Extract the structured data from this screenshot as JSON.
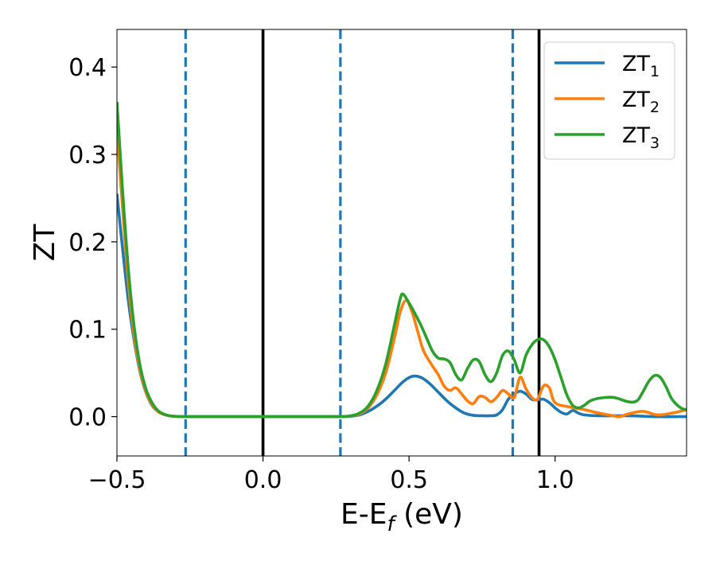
{
  "chart_data": {
    "type": "line",
    "title": "",
    "ylabel": "ZT",
    "xlabel": {
      "base": "E-E",
      "sub": "f",
      "unit": " (eV)"
    },
    "xlim": [
      -0.5,
      1.45
    ],
    "ylim": [
      -0.045,
      0.443
    ],
    "xticks": [
      -0.5,
      0.0,
      0.5,
      1.0
    ],
    "xtick_labels": [
      "−0.5",
      "0.0",
      "0.5",
      "1.0"
    ],
    "yticks": [
      0.0,
      0.1,
      0.2,
      0.3,
      0.4
    ],
    "ytick_labels": [
      "0.0",
      "0.1",
      "0.2",
      "0.3",
      "0.4"
    ],
    "grid": false,
    "legend_position": "top-right",
    "vlines": [
      {
        "x": -0.265,
        "style": "dashed",
        "color": "#1f77b4"
      },
      {
        "x": 0.0,
        "style": "solid",
        "color": "#000000"
      },
      {
        "x": 0.265,
        "style": "dashed",
        "color": "#1f77b4"
      },
      {
        "x": 0.855,
        "style": "dashed",
        "color": "#1f77b4"
      },
      {
        "x": 0.945,
        "style": "solid",
        "color": "#000000"
      }
    ],
    "series": [
      {
        "name": "ZT",
        "name_sub": "1",
        "color": "#1f77b4",
        "points": [
          [
            -0.5,
            0.255
          ],
          [
            -0.48,
            0.19
          ],
          [
            -0.46,
            0.13
          ],
          [
            -0.44,
            0.085
          ],
          [
            -0.42,
            0.05
          ],
          [
            -0.4,
            0.027
          ],
          [
            -0.38,
            0.013
          ],
          [
            -0.36,
            0.006
          ],
          [
            -0.34,
            0.0025
          ],
          [
            -0.32,
            0.001
          ],
          [
            -0.3,
            0.0003
          ],
          [
            -0.25,
            0.0
          ],
          [
            0.0,
            0.0
          ],
          [
            0.25,
            0.0
          ],
          [
            0.3,
            0.0005
          ],
          [
            0.33,
            0.002
          ],
          [
            0.36,
            0.006
          ],
          [
            0.39,
            0.012
          ],
          [
            0.42,
            0.02
          ],
          [
            0.45,
            0.03
          ],
          [
            0.48,
            0.04
          ],
          [
            0.51,
            0.046
          ],
          [
            0.54,
            0.045
          ],
          [
            0.57,
            0.038
          ],
          [
            0.6,
            0.028
          ],
          [
            0.63,
            0.018
          ],
          [
            0.66,
            0.01
          ],
          [
            0.69,
            0.004
          ],
          [
            0.72,
            0.0015
          ],
          [
            0.75,
            0.001
          ],
          [
            0.78,
            0.001
          ],
          [
            0.8,
            0.002
          ],
          [
            0.82,
            0.008
          ],
          [
            0.84,
            0.02
          ],
          [
            0.86,
            0.026
          ],
          [
            0.88,
            0.029
          ],
          [
            0.9,
            0.026
          ],
          [
            0.92,
            0.02
          ],
          [
            0.94,
            0.019
          ],
          [
            0.96,
            0.02
          ],
          [
            0.98,
            0.016
          ],
          [
            1.0,
            0.01
          ],
          [
            1.02,
            0.005
          ],
          [
            1.04,
            0.003
          ],
          [
            1.06,
            0.007
          ],
          [
            1.08,
            0.004
          ],
          [
            1.1,
            0.002
          ],
          [
            1.15,
            0.001
          ],
          [
            1.25,
            0.001
          ],
          [
            1.35,
            0.0
          ],
          [
            1.45,
            0.0
          ]
        ]
      },
      {
        "name": "ZT",
        "name_sub": "2",
        "color": "#ff7f0e",
        "points": [
          [
            -0.5,
            0.33
          ],
          [
            -0.48,
            0.235
          ],
          [
            -0.46,
            0.15
          ],
          [
            -0.44,
            0.09
          ],
          [
            -0.42,
            0.052
          ],
          [
            -0.4,
            0.028
          ],
          [
            -0.38,
            0.014
          ],
          [
            -0.36,
            0.006
          ],
          [
            -0.34,
            0.0025
          ],
          [
            -0.32,
            0.001
          ],
          [
            -0.3,
            0.0003
          ],
          [
            -0.25,
            0.0
          ],
          [
            0.0,
            0.0
          ],
          [
            0.25,
            0.0
          ],
          [
            0.3,
            0.001
          ],
          [
            0.33,
            0.003
          ],
          [
            0.36,
            0.01
          ],
          [
            0.39,
            0.025
          ],
          [
            0.42,
            0.05
          ],
          [
            0.45,
            0.09
          ],
          [
            0.47,
            0.12
          ],
          [
            0.49,
            0.133
          ],
          [
            0.51,
            0.12
          ],
          [
            0.53,
            0.097
          ],
          [
            0.55,
            0.075
          ],
          [
            0.58,
            0.058
          ],
          [
            0.6,
            0.048
          ],
          [
            0.62,
            0.035
          ],
          [
            0.64,
            0.03
          ],
          [
            0.66,
            0.033
          ],
          [
            0.68,
            0.026
          ],
          [
            0.7,
            0.018
          ],
          [
            0.72,
            0.015
          ],
          [
            0.74,
            0.023
          ],
          [
            0.76,
            0.022
          ],
          [
            0.78,
            0.017
          ],
          [
            0.8,
            0.022
          ],
          [
            0.82,
            0.03
          ],
          [
            0.84,
            0.026
          ],
          [
            0.86,
            0.022
          ],
          [
            0.88,
            0.045
          ],
          [
            0.9,
            0.032
          ],
          [
            0.92,
            0.022
          ],
          [
            0.94,
            0.02
          ],
          [
            0.96,
            0.035
          ],
          [
            0.98,
            0.033
          ],
          [
            1.0,
            0.016
          ],
          [
            1.05,
            0.011
          ],
          [
            1.1,
            0.008
          ],
          [
            1.15,
            0.004
          ],
          [
            1.2,
            0.001
          ],
          [
            1.22,
            0.0
          ],
          [
            1.25,
            0.003
          ],
          [
            1.3,
            0.006
          ],
          [
            1.35,
            0.002
          ],
          [
            1.4,
            0.004
          ],
          [
            1.45,
            0.008
          ]
        ]
      },
      {
        "name": "ZT",
        "name_sub": "3",
        "color": "#2ca02c",
        "points": [
          [
            -0.5,
            0.36
          ],
          [
            -0.48,
            0.255
          ],
          [
            -0.46,
            0.165
          ],
          [
            -0.44,
            0.1
          ],
          [
            -0.42,
            0.057
          ],
          [
            -0.4,
            0.031
          ],
          [
            -0.38,
            0.016
          ],
          [
            -0.36,
            0.007
          ],
          [
            -0.34,
            0.003
          ],
          [
            -0.32,
            0.001
          ],
          [
            -0.3,
            0.0004
          ],
          [
            -0.25,
            0.0
          ],
          [
            0.0,
            0.0
          ],
          [
            0.25,
            0.0
          ],
          [
            0.3,
            0.001
          ],
          [
            0.33,
            0.004
          ],
          [
            0.36,
            0.012
          ],
          [
            0.39,
            0.03
          ],
          [
            0.42,
            0.06
          ],
          [
            0.45,
            0.105
          ],
          [
            0.47,
            0.135
          ],
          [
            0.48,
            0.14
          ],
          [
            0.5,
            0.13
          ],
          [
            0.52,
            0.118
          ],
          [
            0.54,
            0.105
          ],
          [
            0.56,
            0.09
          ],
          [
            0.58,
            0.075
          ],
          [
            0.6,
            0.067
          ],
          [
            0.62,
            0.066
          ],
          [
            0.64,
            0.062
          ],
          [
            0.66,
            0.048
          ],
          [
            0.68,
            0.042
          ],
          [
            0.7,
            0.055
          ],
          [
            0.72,
            0.065
          ],
          [
            0.74,
            0.063
          ],
          [
            0.76,
            0.048
          ],
          [
            0.78,
            0.04
          ],
          [
            0.8,
            0.05
          ],
          [
            0.82,
            0.07
          ],
          [
            0.84,
            0.075
          ],
          [
            0.86,
            0.065
          ],
          [
            0.88,
            0.05
          ],
          [
            0.9,
            0.07
          ],
          [
            0.92,
            0.082
          ],
          [
            0.94,
            0.088
          ],
          [
            0.96,
            0.088
          ],
          [
            0.98,
            0.08
          ],
          [
            1.0,
            0.065
          ],
          [
            1.02,
            0.045
          ],
          [
            1.04,
            0.025
          ],
          [
            1.06,
            0.013
          ],
          [
            1.08,
            0.01
          ],
          [
            1.1,
            0.013
          ],
          [
            1.12,
            0.018
          ],
          [
            1.15,
            0.021
          ],
          [
            1.2,
            0.022
          ],
          [
            1.25,
            0.017
          ],
          [
            1.28,
            0.018
          ],
          [
            1.3,
            0.028
          ],
          [
            1.32,
            0.04
          ],
          [
            1.34,
            0.047
          ],
          [
            1.36,
            0.045
          ],
          [
            1.38,
            0.034
          ],
          [
            1.4,
            0.02
          ],
          [
            1.43,
            0.01
          ],
          [
            1.45,
            0.008
          ]
        ]
      }
    ]
  }
}
